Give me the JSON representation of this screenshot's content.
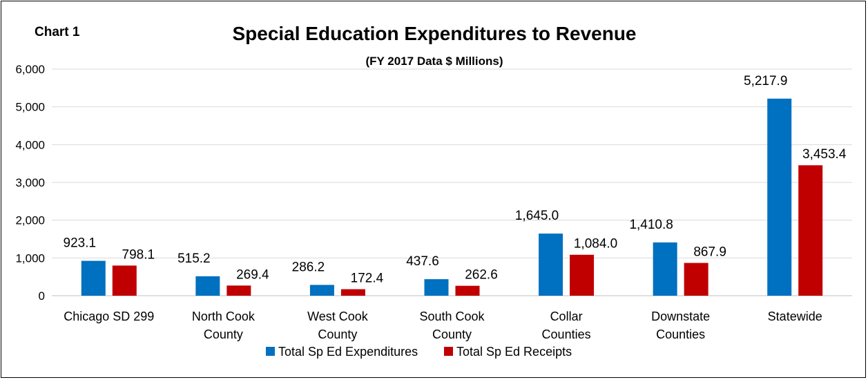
{
  "chart_label": "Chart 1",
  "chart_data": {
    "type": "bar",
    "title": "Special Education Expenditures to Revenue",
    "subtitle": "(FY 2017 Data $ Millions)",
    "categories": [
      [
        "Chicago SD 299"
      ],
      [
        "North Cook",
        "County"
      ],
      [
        "West Cook",
        "County"
      ],
      [
        "South Cook",
        "County"
      ],
      [
        "Collar",
        "Counties"
      ],
      [
        "Downstate",
        "Counties"
      ],
      [
        "Statewide"
      ]
    ],
    "series": [
      {
        "name": "Total Sp Ed Expenditures",
        "color": "#0070C0",
        "values": [
          923.1,
          515.2,
          286.2,
          437.6,
          1645.0,
          1410.8,
          5217.9
        ],
        "labels": [
          "923.1",
          "515.2",
          "286.2",
          "437.6",
          "1,645.0",
          "1,410.8",
          "5,217.9"
        ]
      },
      {
        "name": "Total Sp Ed Receipts",
        "color": "#C00000",
        "values": [
          798.1,
          269.4,
          172.4,
          262.6,
          1084.0,
          867.9,
          3453.4
        ],
        "labels": [
          "798.1",
          "269.4",
          "172.4",
          "262.6",
          "1,084.0",
          "867.9",
          "3,453.4"
        ]
      }
    ],
    "ylim": [
      0,
      6000
    ],
    "yticks": [
      {
        "value": 0,
        "label": "0"
      },
      {
        "value": 1000,
        "label": "1,000"
      },
      {
        "value": 2000,
        "label": "2,000"
      },
      {
        "value": 3000,
        "label": "3,000"
      },
      {
        "value": 4000,
        "label": "4,000"
      },
      {
        "value": 5000,
        "label": "5,000"
      },
      {
        "value": 6000,
        "label": "6,000"
      }
    ],
    "grid": true,
    "legend_position": "bottom"
  }
}
